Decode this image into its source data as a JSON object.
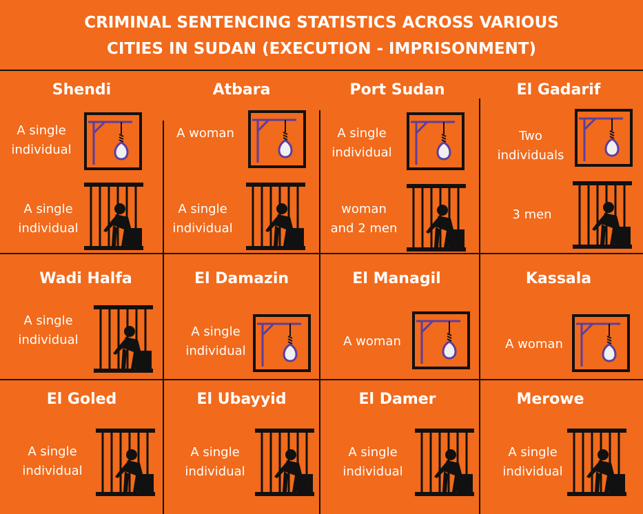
{
  "title": {
    "line1": "CRIMINAL SENTENCING STATISTICS ACROSS VARIOUS",
    "line2": "CITIES IN SUDAN (EXECUTION - IMPRISONMENT)"
  },
  "colors": {
    "background": "#f26a1b",
    "text": "#ffffff",
    "frame": "#111111",
    "gallows": "#5a3fa0",
    "noose": "#f0f0f0"
  },
  "cities": [
    {
      "name": "Shendi",
      "execution": [
        "A single",
        "individual"
      ],
      "imprisonment": [
        "A single",
        "individual"
      ]
    },
    {
      "name": "Atbara",
      "execution": [
        "A woman"
      ],
      "imprisonment": [
        "A single",
        "individual"
      ]
    },
    {
      "name": "Port Sudan",
      "execution": [
        "A single",
        "individual"
      ],
      "imprisonment": [
        "woman",
        "and 2 men"
      ]
    },
    {
      "name": "El Gadarif",
      "execution": [
        "Two",
        "individuals"
      ],
      "imprisonment": [
        "3 men"
      ]
    },
    {
      "name": "Wadi Halfa",
      "imprisonment": [
        "A single",
        "individual"
      ]
    },
    {
      "name": "El Damazin",
      "execution": [
        "A single",
        "individual"
      ]
    },
    {
      "name": "El Managil",
      "execution": [
        "A woman"
      ]
    },
    {
      "name": "Kassala",
      "execution": [
        "A woman"
      ]
    },
    {
      "name": "El Goled",
      "imprisonment": [
        "A single",
        "individual"
      ]
    },
    {
      "name": "El Ubayyid",
      "imprisonment": [
        "A single",
        "individual"
      ]
    },
    {
      "name": "El Damer",
      "imprisonment": [
        "A single",
        "individual"
      ]
    },
    {
      "name": "Merowe",
      "imprisonment": [
        "A single",
        "individual"
      ]
    }
  ]
}
